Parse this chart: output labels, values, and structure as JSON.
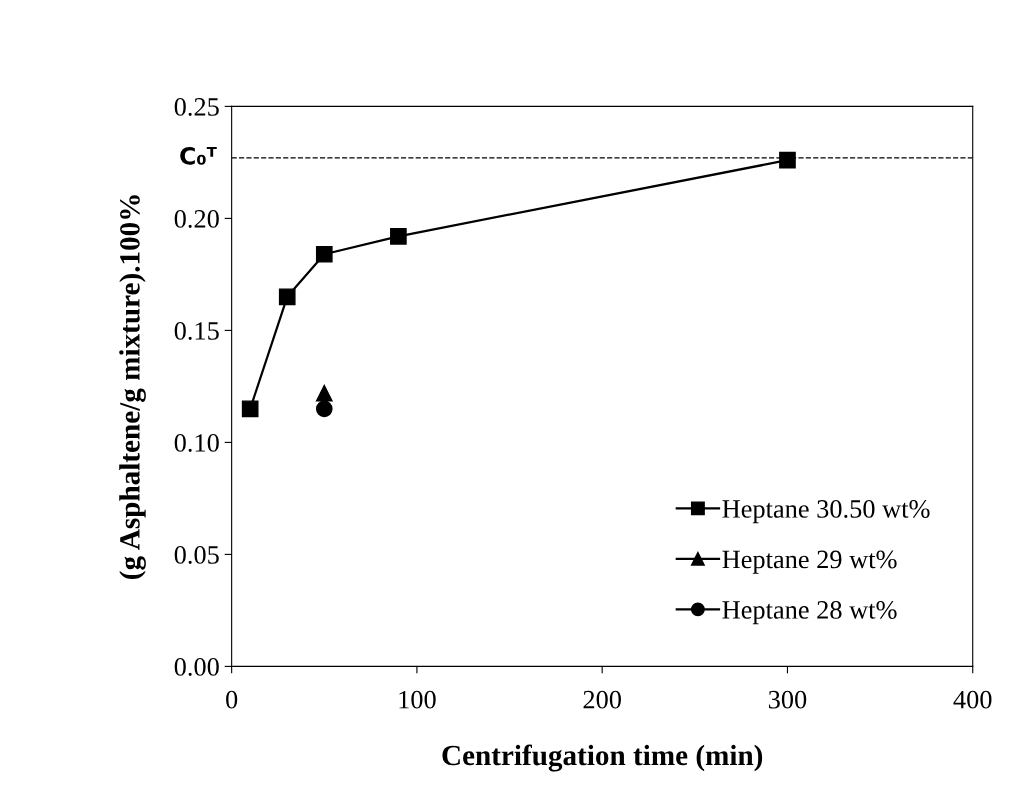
{
  "chart_data": {
    "type": "line",
    "xlabel": "Centrifugation time (min)",
    "ylabel": "(g Asphaltene/g mixture).100%",
    "series": [
      {
        "name": "Heptane 30.50 wt%",
        "color": "#000000",
        "marker": "square",
        "x": [
          10,
          30,
          50,
          90,
          300
        ],
        "values": [
          0.115,
          0.165,
          0.184,
          0.192,
          0.226
        ]
      },
      {
        "name": "Heptane 29 wt%",
        "color": "#000000",
        "marker": "triangle",
        "x": [
          50
        ],
        "values": [
          0.122
        ]
      },
      {
        "name": "Heptane 28 wt%",
        "color": "#000000",
        "marker": "circle",
        "x": [
          50
        ],
        "values": [
          0.115
        ]
      }
    ],
    "line_style": "solid",
    "xlim": [
      0,
      400
    ],
    "xticks": [
      0,
      100,
      200,
      300,
      400
    ],
    "ylim": [
      0,
      0.25
    ],
    "yticks": [
      {
        "value": 0,
        "label": "0.00"
      },
      {
        "value": 0.05,
        "label": "0.05"
      },
      {
        "value": 0.1,
        "label": "0.10"
      },
      {
        "value": 0.15,
        "label": "0.15"
      },
      {
        "value": 0.2,
        "label": "0.20"
      },
      {
        "value": 0.25,
        "label": "0.25"
      }
    ],
    "ref_lines": [
      {
        "axis": "y",
        "value": 0.227,
        "label": "C₀ᵀ",
        "color": "#000000",
        "line_style": "dashed"
      }
    ],
    "grid": false,
    "legend": "bottom right"
  }
}
